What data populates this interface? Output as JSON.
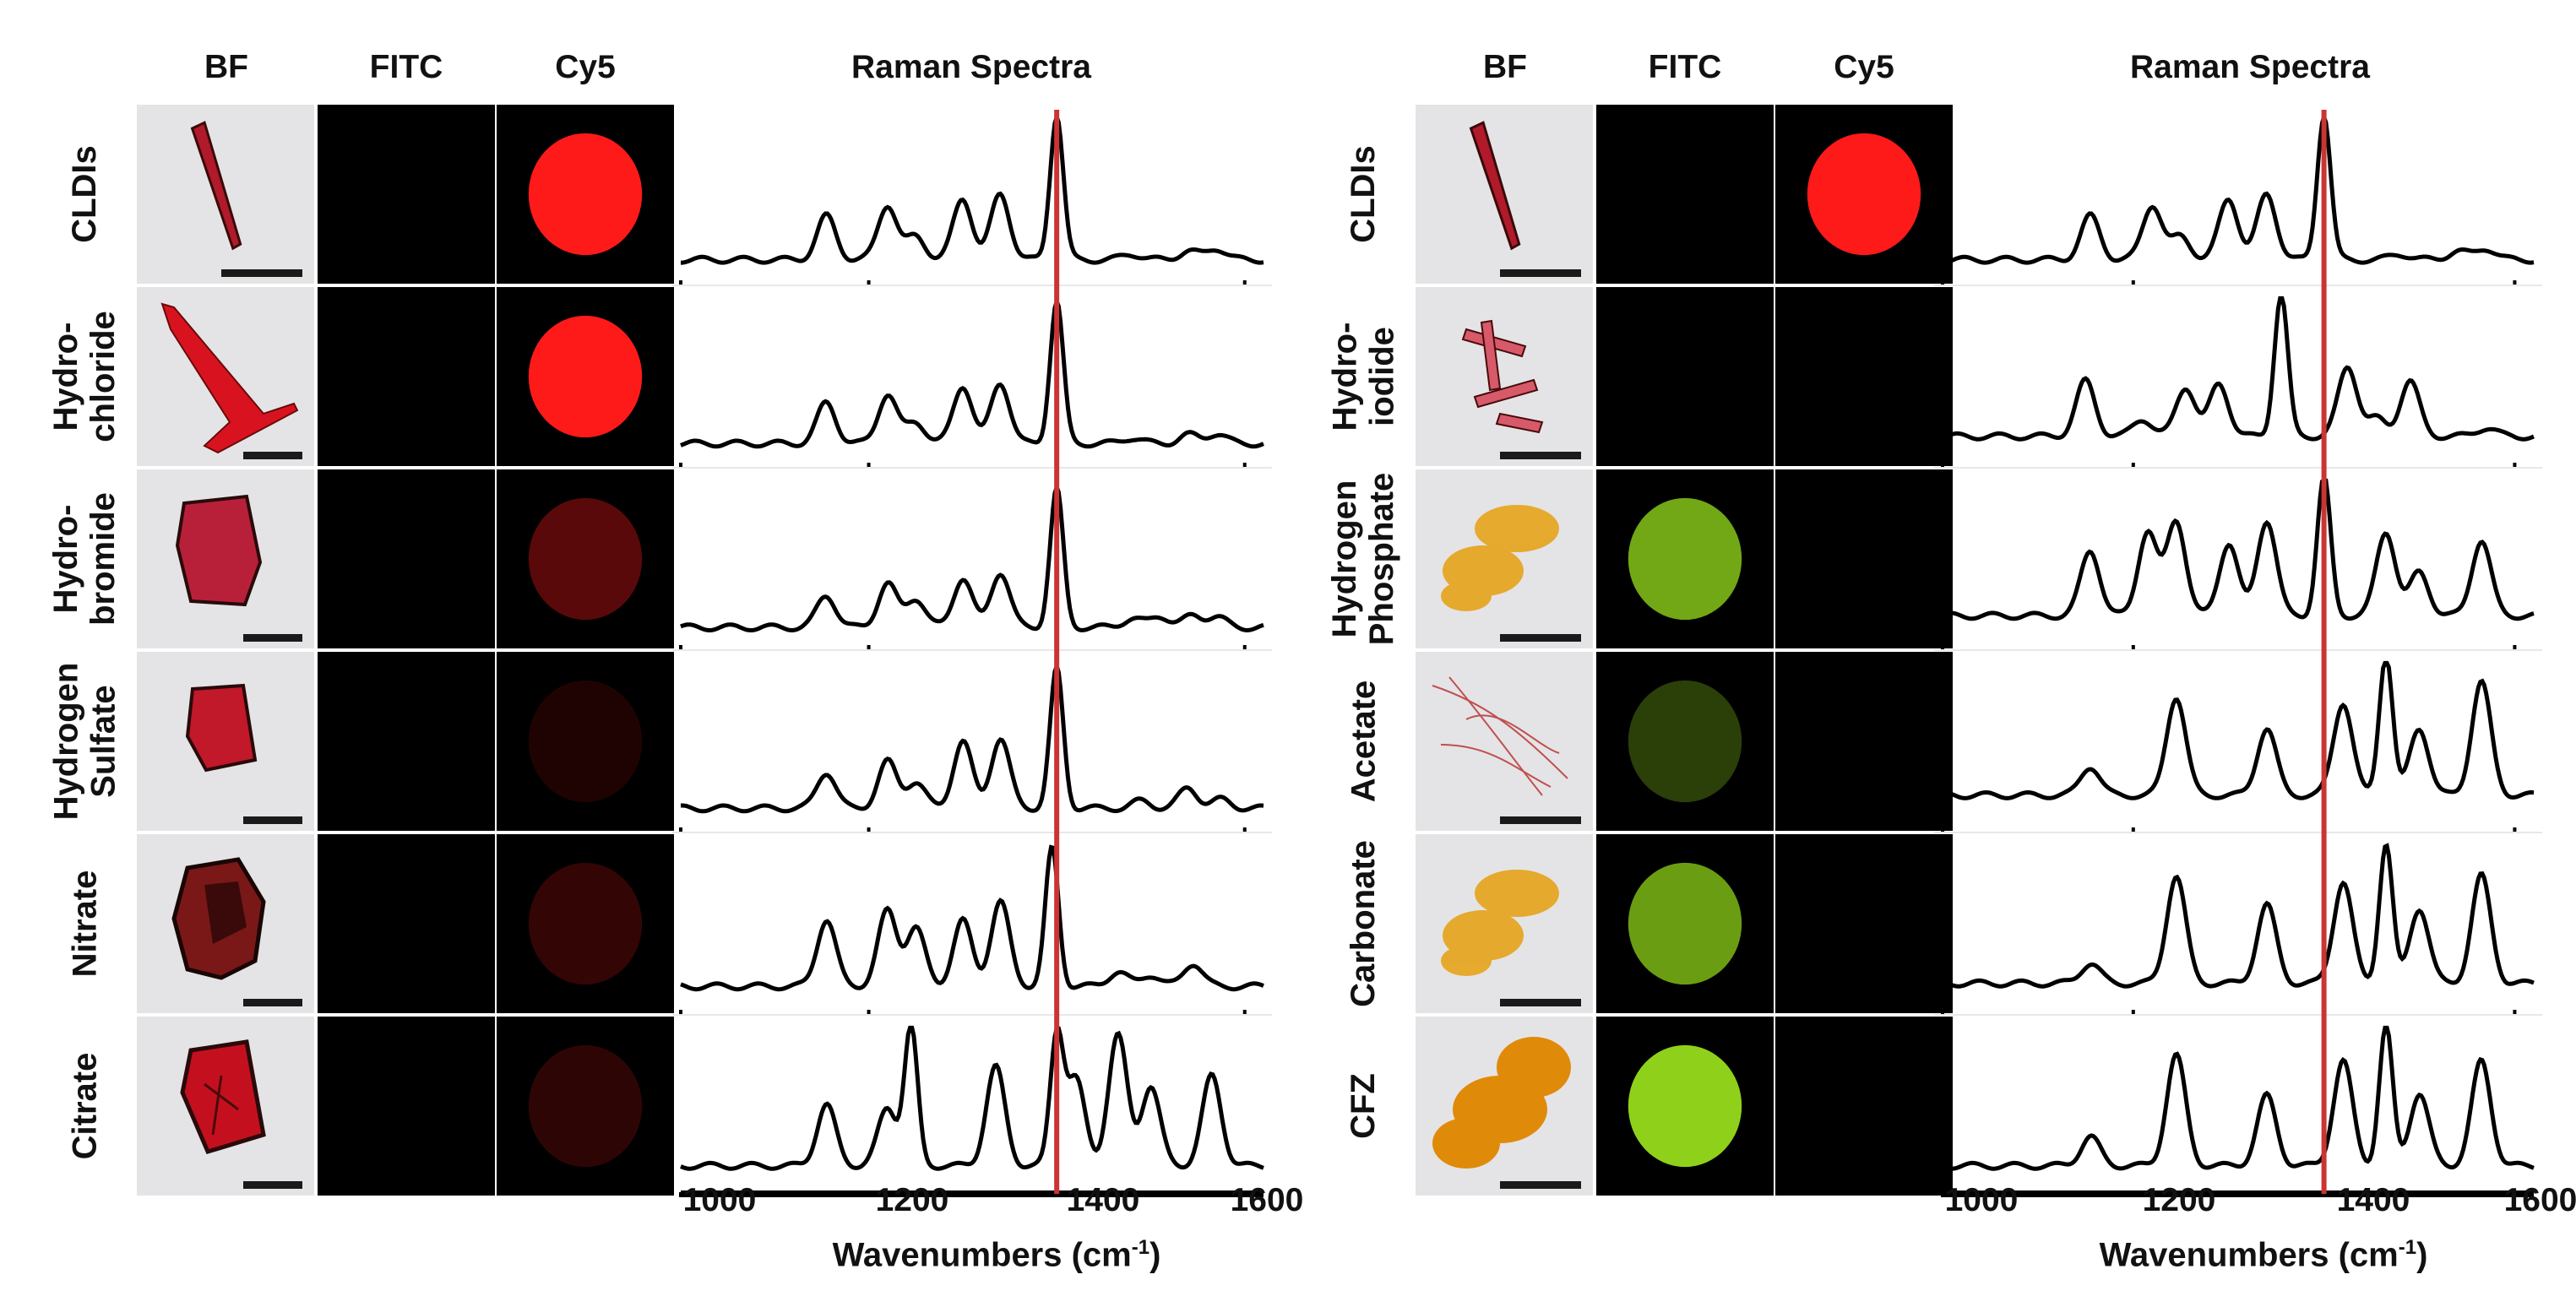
{
  "figure": {
    "panels": [
      {
        "id": "left",
        "column_headers": [
          "BF",
          "FITC",
          "Cy5",
          "Raman Spectra"
        ],
        "rows": [
          {
            "label": "CLDIs",
            "bf": "red-needle-crystal",
            "fitc": 0,
            "cy5": 1.0
          },
          {
            "label": "Hydro-\nchloride",
            "bf": "red-branched-crystal",
            "fitc": 0,
            "cy5": 1.0
          },
          {
            "label": "Hydro-\nbromide",
            "bf": "red-plate-crystal",
            "fitc": 0,
            "cy5": 0.35
          },
          {
            "label": "Hydrogen\nSulfate",
            "bf": "red-cube-crystal",
            "fitc": 0,
            "cy5": 0.12
          },
          {
            "label": "Nitrate",
            "bf": "dark-aggregate-crystal",
            "fitc": 0,
            "cy5": 0.2
          },
          {
            "label": "Citrate",
            "bf": "red-square-crystal",
            "fitc": 0,
            "cy5": 0.18
          }
        ],
        "x_axis": {
          "ticks": [
            "1000",
            "1200",
            "1400",
            "1600"
          ],
          "title": "Wavenumbers (cm",
          "title_sup": "-1",
          "title_end": ")"
        }
      },
      {
        "id": "right",
        "column_headers": [
          "BF",
          "FITC",
          "Cy5",
          "Raman Spectra"
        ],
        "rows": [
          {
            "label": "CLDIs",
            "bf": "red-needle-crystal",
            "fitc": 0,
            "cy5": 1.0
          },
          {
            "label": "Hydro-\niodide",
            "bf": "red-needle-cluster",
            "fitc": 0,
            "cy5": 0
          },
          {
            "label": "Hydrogen\nPhosphate",
            "bf": "yellow-fiber-aggregate",
            "fitc": 0.8,
            "cy5": 0
          },
          {
            "label": "Acetate",
            "bf": "red-fiber-network",
            "fitc": 0.3,
            "cy5": 0
          },
          {
            "label": "Carbonate",
            "bf": "yellow-fiber-aggregate",
            "fitc": 0.75,
            "cy5": 0
          },
          {
            "label": "CFZ",
            "bf": "orange-particle-aggregate",
            "fitc": 1.0,
            "cy5": 0
          }
        ],
        "x_axis": {
          "ticks": [
            "1000",
            "1200",
            "1400",
            "1600"
          ],
          "title": "Wavenumbers (cm",
          "title_sup": "-1",
          "title_end": ")"
        }
      }
    ],
    "colors": {
      "cy5": "#ff1a1a",
      "fitc": "#8fd11a",
      "marker": "#cc3333",
      "trace": "#000000"
    }
  },
  "chart_data": [
    {
      "type": "line",
      "title": "Raman Spectra (left panel)",
      "xlabel": "Wavenumbers (cm-1)",
      "ylabel": "",
      "xlim": [
        1000,
        1620
      ],
      "xticks": [
        1000,
        1200,
        1400,
        1600
      ],
      "marker_line_x": 1400,
      "series": [
        {
          "name": "CLDIs",
          "peaks": [
            [
              1155,
              0.3
            ],
            [
              1220,
              0.38
            ],
            [
              1250,
              0.16
            ],
            [
              1300,
              0.42
            ],
            [
              1340,
              0.45
            ],
            [
              1400,
              1.0
            ],
            [
              1480,
              0.04
            ],
            [
              1540,
              0.06
            ],
            [
              1570,
              0.08
            ]
          ],
          "baseline": 0.06
        },
        {
          "name": "Hydrochloride",
          "peaks": [
            [
              1155,
              0.28
            ],
            [
              1220,
              0.34
            ],
            [
              1250,
              0.15
            ],
            [
              1300,
              0.4
            ],
            [
              1340,
              0.42
            ],
            [
              1400,
              0.98
            ],
            [
              1480,
              0.04
            ],
            [
              1540,
              0.06
            ],
            [
              1570,
              0.07
            ]
          ],
          "baseline": 0.05
        },
        {
          "name": "Hydrobromide",
          "peaks": [
            [
              1155,
              0.22
            ],
            [
              1220,
              0.3
            ],
            [
              1250,
              0.2
            ],
            [
              1300,
              0.34
            ],
            [
              1340,
              0.38
            ],
            [
              1400,
              0.95
            ],
            [
              1480,
              0.06
            ],
            [
              1510,
              0.08
            ],
            [
              1545,
              0.08
            ],
            [
              1570,
              0.07
            ]
          ],
          "baseline": 0.04
        },
        {
          "name": "Hydrogen Sulfate",
          "peaks": [
            [
              1155,
              0.25
            ],
            [
              1220,
              0.32
            ],
            [
              1250,
              0.18
            ],
            [
              1300,
              0.46
            ],
            [
              1340,
              0.48
            ],
            [
              1400,
              0.96
            ],
            [
              1490,
              0.05
            ],
            [
              1540,
              0.14
            ],
            [
              1575,
              0.06
            ]
          ],
          "baseline": 0.05
        },
        {
          "name": "Nitrate",
          "peaks": [
            [
              1155,
              0.46
            ],
            [
              1220,
              0.52
            ],
            [
              1250,
              0.4
            ],
            [
              1300,
              0.45
            ],
            [
              1340,
              0.58
            ],
            [
              1395,
              0.95
            ],
            [
              1465,
              0.1
            ],
            [
              1500,
              0.08
            ],
            [
              1545,
              0.16
            ]
          ],
          "baseline": 0.08
        },
        {
          "name": "Citrate",
          "peaks": [
            [
              1155,
              0.42
            ],
            [
              1220,
              0.4
            ],
            [
              1245,
              0.95
            ],
            [
              1335,
              0.68
            ],
            [
              1400,
              0.88
            ],
            [
              1420,
              0.6
            ],
            [
              1465,
              0.9
            ],
            [
              1500,
              0.55
            ],
            [
              1565,
              0.62
            ]
          ],
          "baseline": 0.1
        }
      ]
    },
    {
      "type": "line",
      "title": "Raman Spectra (right panel)",
      "xlabel": "Wavenumbers (cm-1)",
      "ylabel": "",
      "xlim": [
        1000,
        1620
      ],
      "xticks": [
        1000,
        1200,
        1400,
        1600
      ],
      "marker_line_x": 1400,
      "series": [
        {
          "name": "CLDIs",
          "peaks": [
            [
              1155,
              0.3
            ],
            [
              1220,
              0.38
            ],
            [
              1250,
              0.16
            ],
            [
              1300,
              0.42
            ],
            [
              1340,
              0.45
            ],
            [
              1400,
              1.0
            ],
            [
              1480,
              0.04
            ],
            [
              1540,
              0.06
            ],
            [
              1570,
              0.08
            ]
          ],
          "baseline": 0.06
        },
        {
          "name": "Hydroiodide",
          "peaks": [
            [
              1150,
              0.38
            ],
            [
              1210,
              0.12
            ],
            [
              1255,
              0.34
            ],
            [
              1290,
              0.36
            ],
            [
              1355,
              0.98
            ],
            [
              1425,
              0.48
            ],
            [
              1455,
              0.12
            ],
            [
              1490,
              0.38
            ],
            [
              1570,
              0.06
            ]
          ],
          "baseline": 0.1
        },
        {
          "name": "Hydrogen Phosphate",
          "peaks": [
            [
              1155,
              0.45
            ],
            [
              1215,
              0.58
            ],
            [
              1245,
              0.66
            ],
            [
              1300,
              0.5
            ],
            [
              1340,
              0.66
            ],
            [
              1400,
              0.95
            ],
            [
              1465,
              0.58
            ],
            [
              1500,
              0.3
            ],
            [
              1565,
              0.52
            ]
          ],
          "baseline": 0.12
        },
        {
          "name": "Acetate",
          "peaks": [
            [
              1155,
              0.2
            ],
            [
              1245,
              0.68
            ],
            [
              1340,
              0.46
            ],
            [
              1420,
              0.64
            ],
            [
              1465,
              0.98
            ],
            [
              1500,
              0.46
            ],
            [
              1565,
              0.78
            ]
          ],
          "baseline": 0.14
        },
        {
          "name": "Carbonate",
          "peaks": [
            [
              1155,
              0.14
            ],
            [
              1245,
              0.74
            ],
            [
              1340,
              0.54
            ],
            [
              1420,
              0.7
            ],
            [
              1465,
              0.96
            ],
            [
              1500,
              0.52
            ],
            [
              1565,
              0.74
            ]
          ],
          "baseline": 0.1
        },
        {
          "name": "CFZ",
          "peaks": [
            [
              1155,
              0.2
            ],
            [
              1245,
              0.76
            ],
            [
              1340,
              0.48
            ],
            [
              1420,
              0.72
            ],
            [
              1465,
              0.96
            ],
            [
              1500,
              0.5
            ],
            [
              1565,
              0.72
            ]
          ],
          "baseline": 0.1
        }
      ]
    }
  ]
}
